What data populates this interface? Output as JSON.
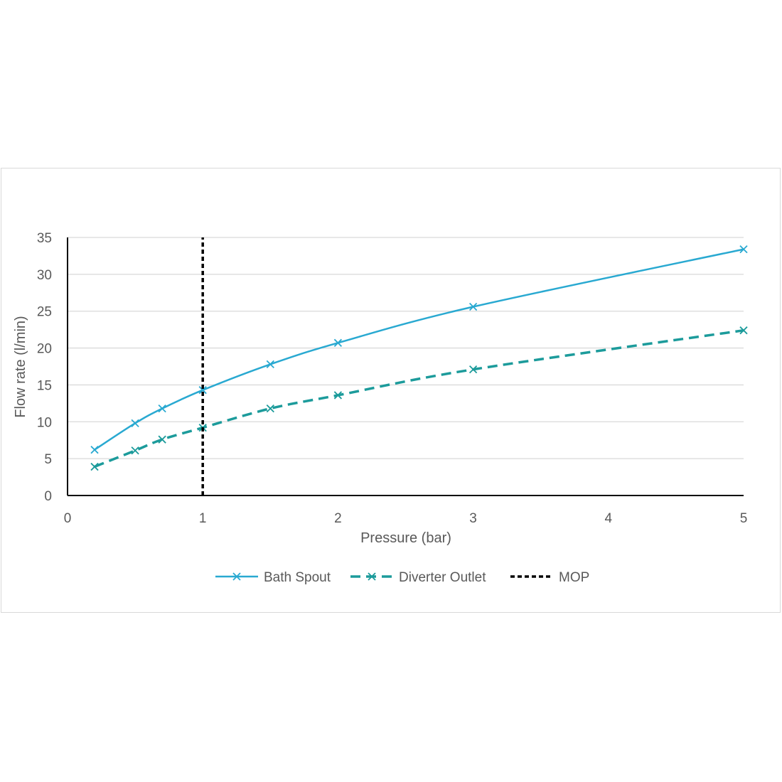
{
  "chart_data": {
    "type": "line",
    "xlabel": "Pressure (bar)",
    "ylabel": "Flow rate (l/min)",
    "xlim": [
      0,
      5
    ],
    "ylim": [
      0,
      35
    ],
    "x_ticks": [
      "0",
      "1",
      "2",
      "3",
      "4",
      "5"
    ],
    "y_ticks": [
      "0",
      "5",
      "10",
      "15",
      "20",
      "25",
      "30",
      "35"
    ],
    "grid": "horizontal",
    "legend_position": "bottom",
    "series": [
      {
        "name": "Bath Spout",
        "color": "#29a9d1",
        "style": "solid",
        "marker": "x",
        "points": [
          [
            0.2,
            6.2
          ],
          [
            0.5,
            9.8
          ],
          [
            0.7,
            11.8
          ],
          [
            1.0,
            14.3
          ],
          [
            1.5,
            17.8
          ],
          [
            2.0,
            20.7
          ],
          [
            3.0,
            25.6
          ],
          [
            5.0,
            33.4
          ]
        ]
      },
      {
        "name": "Diverter Outlet",
        "color": "#1c9b9b",
        "style": "dashed",
        "marker": "x",
        "points": [
          [
            0.2,
            3.9
          ],
          [
            0.5,
            6.1
          ],
          [
            0.7,
            7.6
          ],
          [
            1.0,
            9.2
          ],
          [
            1.5,
            11.8
          ],
          [
            2.0,
            13.6
          ],
          [
            3.0,
            17.1
          ],
          [
            5.0,
            22.4
          ]
        ]
      },
      {
        "name": "MOP",
        "color": "#000000",
        "style": "dotted",
        "marker": "none",
        "points": [
          [
            1.0,
            0
          ],
          [
            1.0,
            35
          ]
        ]
      }
    ]
  }
}
